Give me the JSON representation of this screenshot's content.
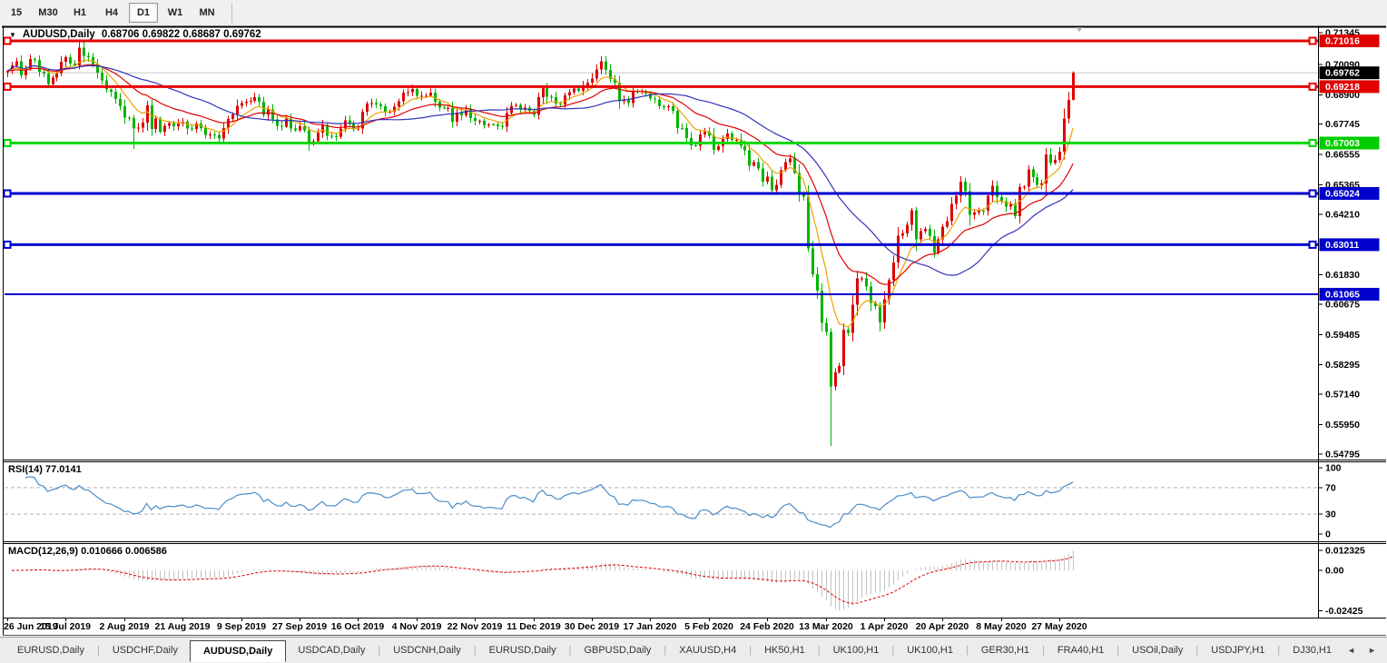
{
  "toolbar": {
    "timeframes": [
      {
        "label": "15",
        "active": false
      },
      {
        "label": "M30",
        "active": false
      },
      {
        "label": "H1",
        "active": false
      },
      {
        "label": "H4",
        "active": false
      },
      {
        "label": "D1",
        "active": true
      },
      {
        "label": "W1",
        "active": false
      },
      {
        "label": "MN",
        "active": false
      }
    ]
  },
  "chart_header": {
    "collapse_icon": "▼",
    "symbol": "AUDUSD,Daily",
    "ohlc_text": "0.68706 0.69822 0.68687 0.69762"
  },
  "indicators": {
    "rsi_label": "RSI(14) 77.0141",
    "macd_label": "MACD(12,26,9) 0.010666 0.006586"
  },
  "chart_data": {
    "type": "candlestick",
    "symbol": "AUDUSD",
    "timeframe": "Daily",
    "current_ohlc": {
      "open": 0.68706,
      "high": 0.69822,
      "low": 0.68687,
      "close": 0.69762
    },
    "ylim": [
      0.54608,
      0.71551
    ],
    "y_ticks": [
      0.71345,
      0.7009,
      0.689,
      0.67745,
      0.66555,
      0.65365,
      0.6421,
      0.6183,
      0.60675,
      0.59485,
      0.58295,
      0.5714,
      0.5595,
      0.54795
    ],
    "price_labels": [
      {
        "value": "0.71016",
        "price": 0.71016,
        "bg": "#e00000"
      },
      {
        "value": "0.69762",
        "price": 0.69762,
        "bg": "#000000"
      },
      {
        "value": "0.69218",
        "price": 0.69218,
        "bg": "#e00000"
      },
      {
        "value": "0.67003",
        "price": 0.67003,
        "bg": "#00cc00"
      },
      {
        "value": "0.65024",
        "price": 0.65024,
        "bg": "#0000cc"
      },
      {
        "value": "0.63011",
        "price": 0.63011,
        "bg": "#0000cc"
      },
      {
        "value": "0.61065",
        "price": 0.61065,
        "bg": "#0000cc"
      }
    ],
    "hlines": [
      {
        "price": 0.71016,
        "color": "#e60000",
        "width": 3,
        "selected": true
      },
      {
        "price": 0.69218,
        "color": "#e60000",
        "width": 3,
        "selected": true
      },
      {
        "price": 0.67003,
        "color": "#00d800",
        "width": 3,
        "selected": true
      },
      {
        "price": 0.65024,
        "color": "#0000d0",
        "width": 3,
        "selected": true
      },
      {
        "price": 0.63011,
        "color": "#0000d0",
        "width": 3,
        "selected": true
      },
      {
        "price": 0.61065,
        "color": "#0000d0",
        "width": 2,
        "selected": false
      }
    ],
    "current_price_line": {
      "price": 0.69762,
      "color": "#c8c8c8"
    },
    "x_labels": [
      "26 Jun 2019",
      "15 Jul 2019",
      "2 Aug 2019",
      "21 Aug 2019",
      "9 Sep 2019",
      "27 Sep 2019",
      "16 Oct 2019",
      "4 Nov 2019",
      "22 Nov 2019",
      "11 Dec 2019",
      "30 Dec 2019",
      "17 Jan 2020",
      "5 Feb 2020",
      "24 Feb 2020",
      "13 Mar 2020",
      "1 Apr 2020",
      "20 Apr 2020",
      "8 May 2020",
      "27 May 2020"
    ],
    "x_label_step": 13,
    "open_first": 0.6978,
    "closes": [
      0.6983,
      0.7005,
      0.7021,
      0.6966,
      0.6993,
      0.7031,
      0.7027,
      0.6981,
      0.6973,
      0.6932,
      0.6958,
      0.6975,
      0.7019,
      0.7038,
      0.7012,
      0.7006,
      0.7074,
      0.7043,
      0.7038,
      0.701,
      0.6977,
      0.6947,
      0.691,
      0.6902,
      0.6874,
      0.6845,
      0.68,
      0.6799,
      0.6757,
      0.6761,
      0.6781,
      0.6848,
      0.6755,
      0.6797,
      0.6745,
      0.6768,
      0.6778,
      0.6766,
      0.6777,
      0.6785,
      0.6757,
      0.6756,
      0.6777,
      0.676,
      0.6733,
      0.6734,
      0.6733,
      0.6719,
      0.676,
      0.6795,
      0.6812,
      0.6846,
      0.6858,
      0.6863,
      0.6866,
      0.688,
      0.6863,
      0.681,
      0.6832,
      0.6793,
      0.6768,
      0.6765,
      0.6797,
      0.6758,
      0.675,
      0.6767,
      0.6751,
      0.67,
      0.6708,
      0.6741,
      0.6772,
      0.6729,
      0.6727,
      0.6725,
      0.6757,
      0.679,
      0.6777,
      0.6754,
      0.6758,
      0.6823,
      0.6855,
      0.6858,
      0.6852,
      0.6845,
      0.6823,
      0.6823,
      0.6843,
      0.6865,
      0.6898,
      0.69,
      0.6913,
      0.6885,
      0.6886,
      0.6886,
      0.6898,
      0.6862,
      0.684,
      0.6838,
      0.6838,
      0.6785,
      0.6819,
      0.6809,
      0.6832,
      0.6798,
      0.6787,
      0.6787,
      0.677,
      0.6774,
      0.6773,
      0.6766,
      0.6764,
      0.6818,
      0.6847,
      0.685,
      0.6834,
      0.684,
      0.6827,
      0.681,
      0.688,
      0.6917,
      0.6882,
      0.688,
      0.6855,
      0.6852,
      0.6887,
      0.69,
      0.6915,
      0.6906,
      0.6925,
      0.6937,
      0.6953,
      0.6989,
      0.7021,
      0.6988,
      0.6951,
      0.6938,
      0.6865,
      0.687,
      0.6857,
      0.6905,
      0.69,
      0.6903,
      0.6895,
      0.6875,
      0.6872,
      0.6845,
      0.6841,
      0.6845,
      0.6827,
      0.676,
      0.6759,
      0.672,
      0.6692,
      0.669,
      0.6735,
      0.6745,
      0.6728,
      0.6673,
      0.6687,
      0.6716,
      0.6737,
      0.6712,
      0.6713,
      0.669,
      0.6671,
      0.6612,
      0.6626,
      0.6601,
      0.6549,
      0.6568,
      0.6515,
      0.6536,
      0.6594,
      0.6626,
      0.664,
      0.6582,
      0.6498,
      0.6489,
      0.6287,
      0.6185,
      0.612,
      0.5994,
      0.5958,
      0.5745,
      0.58,
      0.5825,
      0.5967,
      0.5955,
      0.6066,
      0.6169,
      0.6169,
      0.6137,
      0.6072,
      0.606,
      0.5996,
      0.6087,
      0.6161,
      0.6232,
      0.6336,
      0.6345,
      0.638,
      0.6437,
      0.6323,
      0.6355,
      0.6364,
      0.6335,
      0.6269,
      0.6322,
      0.6373,
      0.6393,
      0.6462,
      0.6494,
      0.6548,
      0.6511,
      0.6418,
      0.6428,
      0.6435,
      0.6434,
      0.6494,
      0.6532,
      0.6488,
      0.6472,
      0.645,
      0.6462,
      0.6414,
      0.6527,
      0.6529,
      0.6597,
      0.6567,
      0.6537,
      0.6541,
      0.6655,
      0.6621,
      0.6635,
      0.6667,
      0.6797,
      0.68706,
      0.69762
    ],
    "overrides": {
      "28": {
        "low": 0.6677
      },
      "67": {
        "low": 0.667
      },
      "183": {
        "low": 0.551
      },
      "237": {
        "open": 0.68706,
        "high": 0.69822,
        "low": 0.68687,
        "close": 0.69762
      }
    },
    "moving_averages": [
      {
        "kind": "ema",
        "period": 8,
        "color": "#f0a000"
      },
      {
        "kind": "ema",
        "period": 21,
        "color": "#e00000"
      },
      {
        "kind": "sma",
        "period": 34,
        "color": "#3333bb"
      }
    ],
    "colors": {
      "bull": "#e00000",
      "bear": "#00b400",
      "background": "#ffffff",
      "border": "#000000"
    },
    "rsi": {
      "period": 14,
      "current": 77.0141,
      "color": "#4a8cc8",
      "axis_labels": [
        "100",
        "70",
        "30",
        "0"
      ],
      "overbought": 70,
      "oversold": 30
    },
    "macd": {
      "fast": 12,
      "slow": 26,
      "signal_period": 9,
      "main": 0.010666,
      "signal": 0.006586,
      "histogram_color": "#c4c4c4",
      "signal_color": "#e00000",
      "axis_labels": [
        "0.012325",
        "0.00",
        "-0.02425"
      ]
    }
  },
  "tabs": {
    "items": [
      {
        "label": "EURUSD,Daily",
        "active": false
      },
      {
        "label": "USDCHF,Daily",
        "active": false
      },
      {
        "label": "AUDUSD,Daily",
        "active": true
      },
      {
        "label": "USDCAD,Daily",
        "active": false
      },
      {
        "label": "USDCNH,Daily",
        "active": false
      },
      {
        "label": "EURUSD,Daily",
        "active": false
      },
      {
        "label": "GBPUSD,Daily",
        "active": false
      },
      {
        "label": "XAUUSD,H4",
        "active": false
      },
      {
        "label": "HK50,H1",
        "active": false
      },
      {
        "label": "UK100,H1",
        "active": false
      },
      {
        "label": "UK100,H1",
        "active": false
      },
      {
        "label": "GER30,H1",
        "active": false
      },
      {
        "label": "FRA40,H1",
        "active": false
      },
      {
        "label": "USOil,Daily",
        "active": false
      },
      {
        "label": "USDJPY,H1",
        "active": false
      },
      {
        "label": "DJ30,H1",
        "active": false
      }
    ],
    "prev_icon": "◄",
    "next_icon": "►"
  }
}
